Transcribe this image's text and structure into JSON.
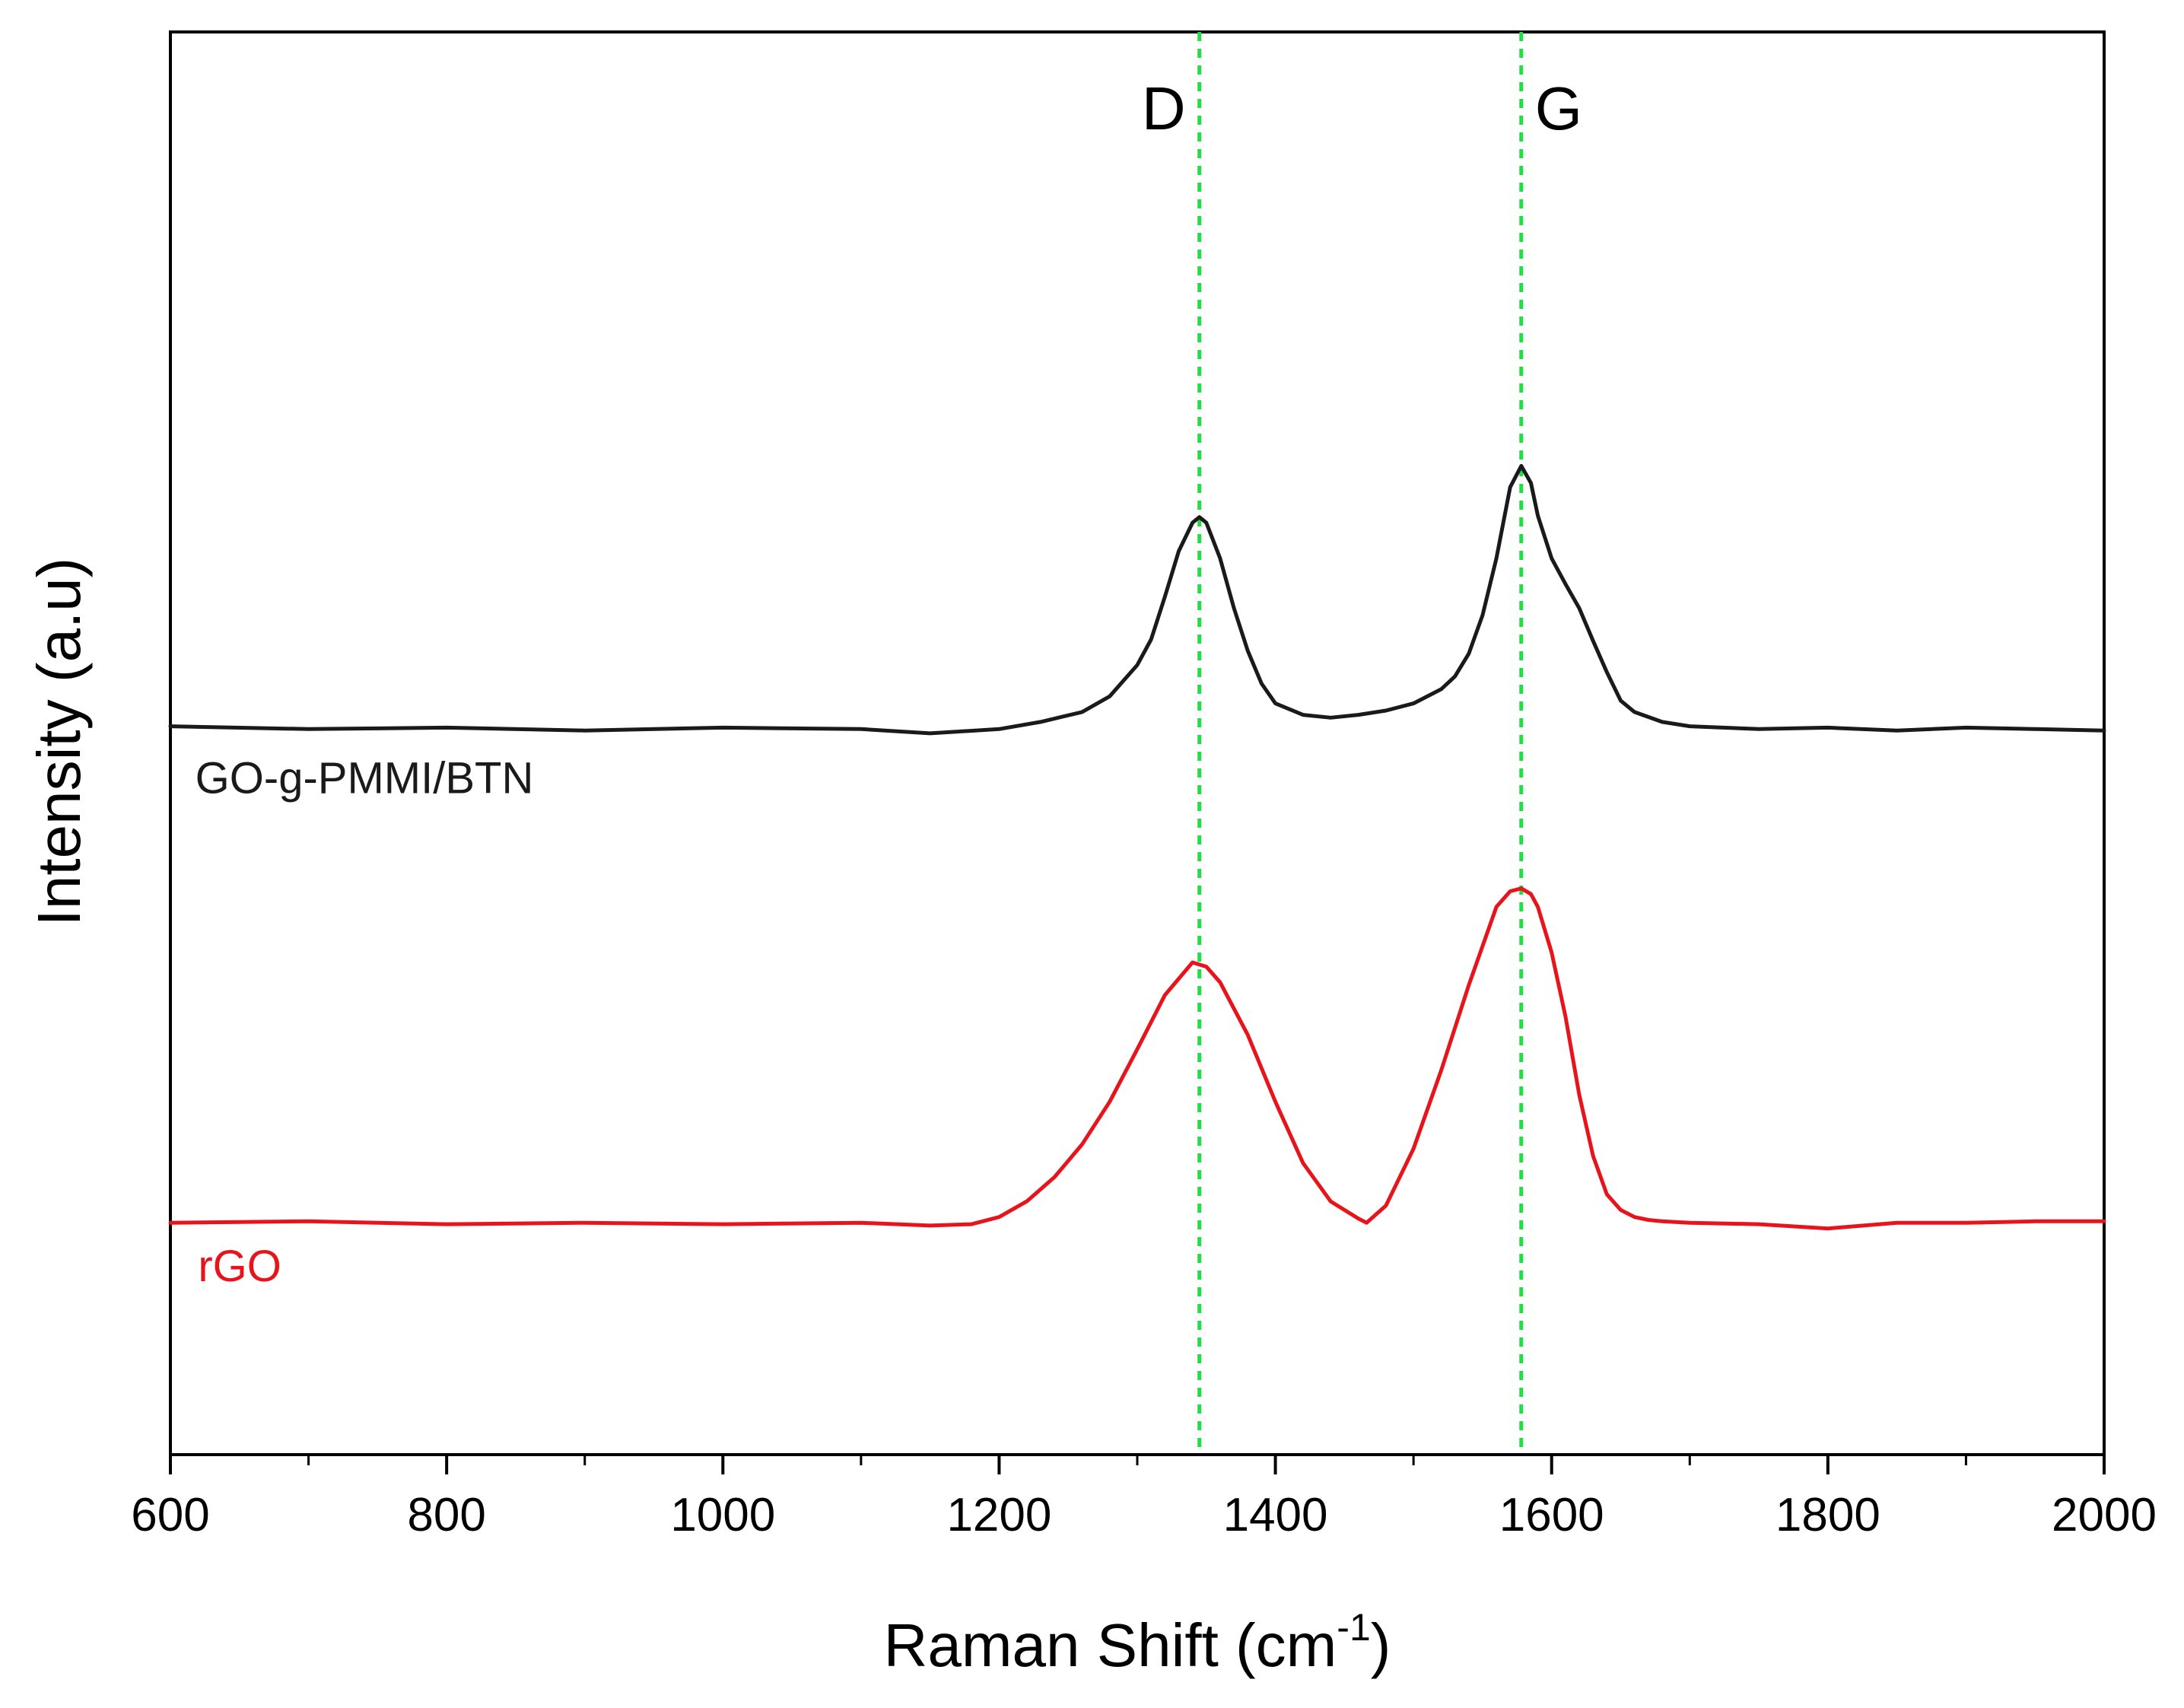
{
  "chart_data": {
    "type": "line",
    "title": "",
    "xlabel": "Raman Shift (cm",
    "xlabel_sup": "-1",
    "xlabel_close": ")",
    "ylabel": "Intensity (a.u)",
    "xlim": [
      600,
      2000
    ],
    "ylim": [
      0,
      100
    ],
    "grid": false,
    "legend": "none",
    "x_ticks": [
      600,
      800,
      1000,
      1200,
      1400,
      1600,
      1800,
      2000
    ],
    "x_tick_labels": [
      "600",
      "800",
      "1000",
      "1200",
      "1400",
      "1600",
      "1800",
      "2000"
    ],
    "x_minor_ticks": [
      700,
      900,
      1100,
      1300,
      1500,
      1700,
      1900
    ],
    "annotations": [
      {
        "label": "D",
        "x": 1345,
        "color": "#22dd44"
      },
      {
        "label": "G",
        "x": 1578,
        "color": "#22dd44"
      }
    ],
    "series": [
      {
        "name": "GO-g-PMMI/BTN",
        "color": "#1a1a1a",
        "x": [
          600,
          700,
          800,
          900,
          1000,
          1100,
          1150,
          1200,
          1230,
          1260,
          1280,
          1300,
          1310,
          1320,
          1330,
          1340,
          1345,
          1350,
          1360,
          1370,
          1380,
          1390,
          1400,
          1420,
          1440,
          1460,
          1480,
          1500,
          1520,
          1530,
          1540,
          1550,
          1560,
          1570,
          1578,
          1585,
          1590,
          1600,
          1610,
          1620,
          1630,
          1640,
          1650,
          1660,
          1680,
          1700,
          1750,
          1800,
          1850,
          1900,
          1950,
          2000
        ],
        "y": [
          51.2,
          51.0,
          51.1,
          50.9,
          51.1,
          51.0,
          50.7,
          51.0,
          51.5,
          52.2,
          53.3,
          55.5,
          57.3,
          60.3,
          63.5,
          65.5,
          65.9,
          65.5,
          63.0,
          59.5,
          56.5,
          54.2,
          52.8,
          52.0,
          51.8,
          52.0,
          52.3,
          52.8,
          53.8,
          54.7,
          56.3,
          59.0,
          63.0,
          68.0,
          69.5,
          68.3,
          66.0,
          63.0,
          61.2,
          59.5,
          57.2,
          55.0,
          53.0,
          52.2,
          51.5,
          51.2,
          51.0,
          51.1,
          50.9,
          51.1,
          51.0,
          50.9
        ]
      },
      {
        "name": "rGO",
        "color": "#e8141c",
        "x": [
          600,
          700,
          800,
          900,
          1000,
          1100,
          1150,
          1180,
          1200,
          1220,
          1240,
          1260,
          1280,
          1300,
          1320,
          1340,
          1350,
          1360,
          1380,
          1400,
          1420,
          1440,
          1460,
          1466,
          1480,
          1500,
          1520,
          1540,
          1560,
          1570,
          1578,
          1585,
          1590,
          1600,
          1610,
          1620,
          1630,
          1640,
          1650,
          1660,
          1670,
          1680,
          1700,
          1750,
          1800,
          1850,
          1900,
          1950,
          2000
        ],
        "y": [
          16.3,
          16.4,
          16.2,
          16.3,
          16.2,
          16.3,
          16.1,
          16.2,
          16.7,
          17.8,
          19.5,
          21.8,
          24.8,
          28.5,
          32.3,
          34.6,
          34.3,
          33.2,
          29.5,
          24.8,
          20.5,
          17.8,
          16.6,
          16.3,
          17.5,
          21.5,
          27.0,
          33.0,
          38.5,
          39.6,
          39.8,
          39.4,
          38.5,
          35.3,
          30.8,
          25.3,
          21.0,
          18.3,
          17.2,
          16.7,
          16.5,
          16.4,
          16.3,
          16.2,
          15.9,
          16.3,
          16.3,
          16.4,
          16.4
        ]
      }
    ],
    "series_labels": [
      {
        "text": "GO-g-PMMI/BTN",
        "x": 618,
        "y": 46.5,
        "color": "#1a1a1a"
      },
      {
        "text": "rGO",
        "x": 620,
        "y": 12.2,
        "color": "#e8141c"
      }
    ]
  }
}
